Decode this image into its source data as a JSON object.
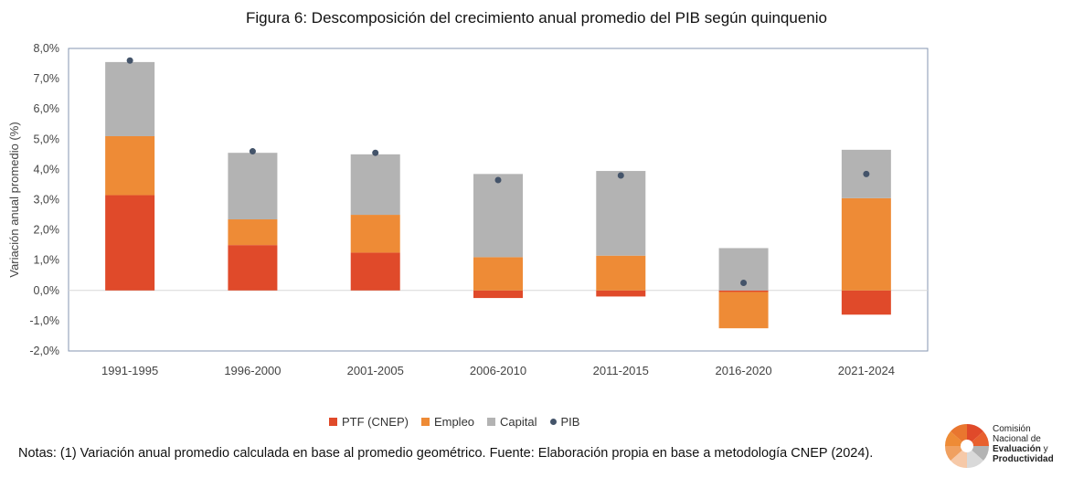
{
  "title": "Figura 6: Descomposición del crecimiento anual promedio del PIB según quinquenio",
  "notes": "Notas: (1) Variación anual promedio calculada en base al promedio geométrico. Fuente: Elaboración propia en base a metodología CNEP (2024).",
  "logo": {
    "line1": "Comisión",
    "line2": "Nacional de",
    "line3": "Evaluación",
    "line3_suffix": "y",
    "line4": "Productividad"
  },
  "colors": {
    "ptf": "#e04a2a",
    "empleo": "#ee8b36",
    "capital": "#b3b3b3",
    "pib": "#44546a"
  },
  "chart_data": {
    "type": "bar",
    "stacked": true,
    "title": "Figura 6: Descomposición del crecimiento anual promedio del PIB según quinquenio",
    "xlabel": "",
    "ylabel": "Variación anual promedio (%)",
    "ylim": [
      -2,
      8
    ],
    "yticks": [
      "8,0%",
      "7,0%",
      "6,0%",
      "5,0%",
      "4,0%",
      "3,0%",
      "2,0%",
      "1,0%",
      "0,0%",
      "-1,0%",
      "-2,0%"
    ],
    "categories": [
      "1991-1995",
      "1996-2000",
      "2001-2005",
      "2006-2010",
      "2011-2015",
      "2016-2020",
      "2021-2024"
    ],
    "series": [
      {
        "name": "PTF (CNEP)",
        "values": [
          3.15,
          1.5,
          1.25,
          -0.25,
          -0.2,
          -0.05,
          -0.8
        ]
      },
      {
        "name": "Empleo",
        "values": [
          1.95,
          0.85,
          1.25,
          1.1,
          1.15,
          -1.2,
          3.05
        ]
      },
      {
        "name": "Capital",
        "values": [
          2.45,
          2.2,
          2.0,
          2.75,
          2.8,
          1.4,
          1.6
        ]
      },
      {
        "name": "PIB",
        "type": "marker",
        "values": [
          7.6,
          4.6,
          4.55,
          3.65,
          3.8,
          0.25,
          3.85
        ]
      }
    ],
    "grid": false,
    "legend_position": "bottom"
  }
}
